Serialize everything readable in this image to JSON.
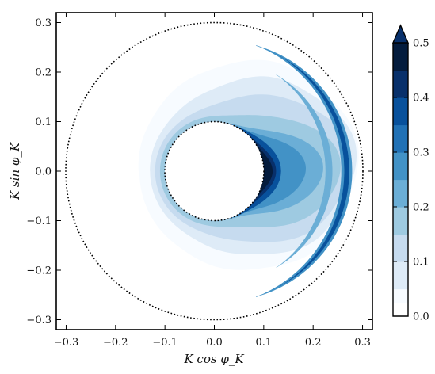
{
  "chart_data": {
    "type": "heatmap",
    "plot_kind": "filled polar contour",
    "title": "",
    "xlabel": "K cos φ_K",
    "ylabel": "K sin φ_K",
    "xlim": [
      -0.32,
      0.32
    ],
    "ylim": [
      -0.32,
      0.32
    ],
    "x_ticks": [
      "−0.3",
      "−0.2",
      "−0.1",
      "0.0",
      "0.1",
      "0.2",
      "0.3"
    ],
    "y_ticks": [
      "−0.3",
      "−0.2",
      "−0.1",
      "0.0",
      "0.1",
      "0.2",
      "0.3"
    ],
    "x_tick_values": [
      -0.3,
      -0.2,
      -0.1,
      0.0,
      0.1,
      0.2,
      0.3
    ],
    "y_tick_values": [
      -0.3,
      -0.2,
      -0.1,
      0.0,
      0.1,
      0.2,
      0.3
    ],
    "inner_circle_radius": 0.1,
    "outer_circle_radius": 0.3,
    "colorbar": {
      "min": 0.0,
      "max": 0.5,
      "extend": "max",
      "tick_values": [
        0.0,
        0.1,
        0.2,
        0.3,
        0.4,
        0.5
      ],
      "tick_labels": [
        "0.0",
        "0.1",
        "0.2",
        "0.3",
        "0.4",
        "0.5"
      ],
      "colormap": "Blues",
      "low_color": "#ffffff",
      "high_color": "#08306b"
    },
    "colors": {
      "c1": "#f7fbff",
      "c2": "#deebf7",
      "c3": "#c6dbef",
      "c4": "#9ecae1",
      "c5": "#6baed6",
      "c6": "#4292c6",
      "c7": "#2171b5",
      "c8": "#08519c",
      "c9": "#08306b",
      "c10": "#041c3d"
    }
  }
}
